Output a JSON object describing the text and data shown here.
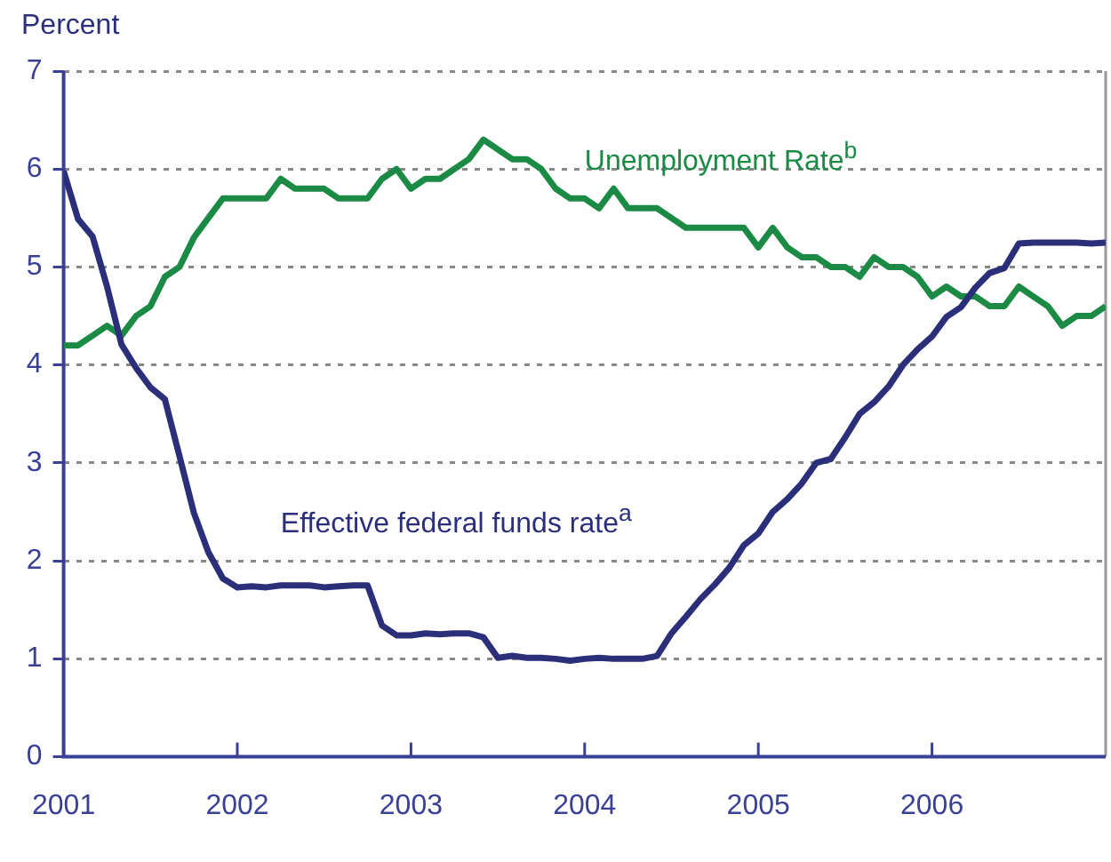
{
  "chart_data": {
    "type": "line",
    "ylabel": "Percent",
    "x": [
      2001,
      2001.083,
      2001.167,
      2001.25,
      2001.333,
      2001.417,
      2001.5,
      2001.583,
      2001.667,
      2001.75,
      2001.833,
      2001.917,
      2002,
      2002.083,
      2002.167,
      2002.25,
      2002.333,
      2002.417,
      2002.5,
      2002.583,
      2002.667,
      2002.75,
      2002.833,
      2002.917,
      2003,
      2003.083,
      2003.167,
      2003.25,
      2003.333,
      2003.417,
      2003.5,
      2003.583,
      2003.667,
      2003.75,
      2003.833,
      2003.917,
      2004,
      2004.083,
      2004.167,
      2004.25,
      2004.333,
      2004.417,
      2004.5,
      2004.583,
      2004.667,
      2004.75,
      2004.833,
      2004.917,
      2005,
      2005.083,
      2005.167,
      2005.25,
      2005.333,
      2005.417,
      2005.5,
      2005.583,
      2005.667,
      2005.75,
      2005.833,
      2005.917,
      2006,
      2006.083,
      2006.167,
      2006.25,
      2006.333,
      2006.417,
      2006.5,
      2006.583,
      2006.667,
      2006.75,
      2006.833,
      2006.917,
      2007
    ],
    "series": [
      {
        "name": "Effective federal funds rate$^{a}$",
        "color": "#2b2f7a",
        "values": [
          5.98,
          5.49,
          5.31,
          4.8,
          4.21,
          3.97,
          3.77,
          3.65,
          3.07,
          2.49,
          2.09,
          1.82,
          1.73,
          1.74,
          1.73,
          1.75,
          1.75,
          1.75,
          1.73,
          1.74,
          1.75,
          1.75,
          1.34,
          1.24,
          1.24,
          1.26,
          1.25,
          1.26,
          1.26,
          1.22,
          1.01,
          1.03,
          1.01,
          1.01,
          1,
          0.98,
          1,
          1.01,
          1,
          1,
          1,
          1.03,
          1.26,
          1.43,
          1.61,
          1.76,
          1.93,
          2.16,
          2.28,
          2.5,
          2.63,
          2.79,
          3,
          3.04,
          3.26,
          3.5,
          3.62,
          3.78,
          4,
          4.16,
          4.29,
          4.49,
          4.59,
          4.79,
          4.94,
          4.99,
          5.24,
          5.25,
          5.25,
          5.25,
          5.25,
          5.24,
          5.25
        ]
      },
      {
        "name": "Unemployment Rate$^{b}$",
        "color": "#1a8a45",
        "values": [
          4.2,
          4.2,
          4.3,
          4.4,
          4.3,
          4.5,
          4.6,
          4.9,
          5,
          5.3,
          5.5,
          5.7,
          5.7,
          5.7,
          5.7,
          5.9,
          5.8,
          5.8,
          5.8,
          5.7,
          5.7,
          5.7,
          5.9,
          6,
          5.8,
          5.9,
          5.9,
          6,
          6.1,
          6.3,
          6.2,
          6.1,
          6.1,
          6,
          5.8,
          5.7,
          5.7,
          5.6,
          5.8,
          5.6,
          5.6,
          5.6,
          5.5,
          5.4,
          5.4,
          5.4,
          5.4,
          5.4,
          5.2,
          5.4,
          5.2,
          5.1,
          5.1,
          5,
          5,
          4.9,
          5.1,
          5,
          5,
          4.9,
          4.7,
          4.8,
          4.7,
          4.7,
          4.6,
          4.6,
          4.8,
          4.7,
          4.6,
          4.4,
          4.5,
          4.5,
          4.6
        ]
      }
    ],
    "xlim": [
      2001,
      2007
    ],
    "xticks": [
      2001,
      2002,
      2003,
      2004,
      2005,
      2006
    ],
    "ylim": [
      0,
      7
    ],
    "yticks": [
      0,
      1,
      2,
      3,
      4,
      5,
      6,
      7
    ],
    "grid": "y",
    "legend": false,
    "marker": "none",
    "line_style": "solid"
  }
}
